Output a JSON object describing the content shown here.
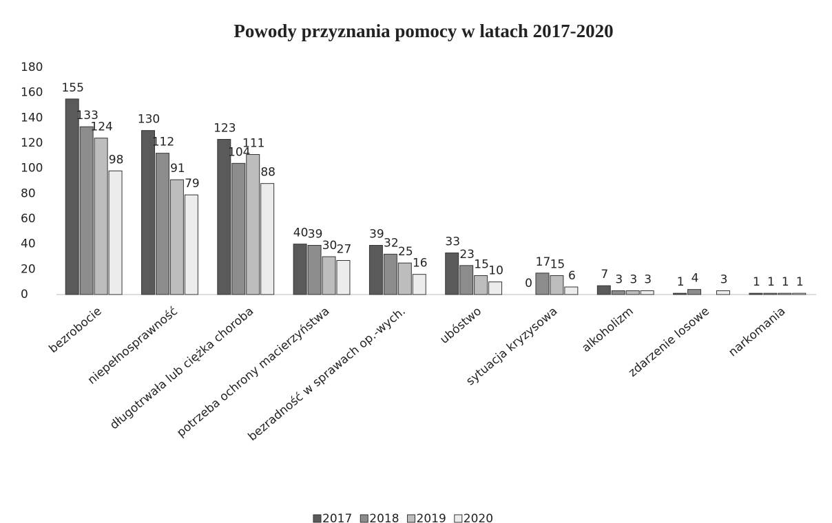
{
  "chart_data": {
    "type": "bar",
    "title": "Powody przyznania pomocy w latach 2017-2020",
    "categories": [
      "bezrobocie",
      "niepełnosprawność",
      "długotrwała lub ciężka choroba",
      "potrzeba ochrony macierzyństwa",
      "bezradność w sprawach op.-wych.",
      "ubóstwo",
      "sytuacja kryzysowa",
      "alkoholizm",
      "zdarzenie losowe",
      "narkomania"
    ],
    "series": [
      {
        "name": "2017",
        "color": "#5a5a5a",
        "values": [
          155,
          130,
          123,
          40,
          39,
          33,
          0,
          7,
          1,
          1
        ]
      },
      {
        "name": "2018",
        "color": "#8c8c8c",
        "values": [
          133,
          112,
          104,
          39,
          32,
          23,
          17,
          3,
          4,
          1
        ]
      },
      {
        "name": "2019",
        "color": "#bdbdbd",
        "values": [
          124,
          91,
          111,
          30,
          25,
          15,
          15,
          3,
          null,
          1
        ]
      },
      {
        "name": "2020",
        "color": "#ececec",
        "values": [
          98,
          79,
          88,
          27,
          16,
          10,
          6,
          3,
          3,
          1
        ]
      }
    ],
    "ylim": [
      0,
      180
    ],
    "yticks": [
      0,
      20,
      40,
      60,
      80,
      100,
      120,
      140,
      160,
      180
    ],
    "legend": "bottom"
  }
}
